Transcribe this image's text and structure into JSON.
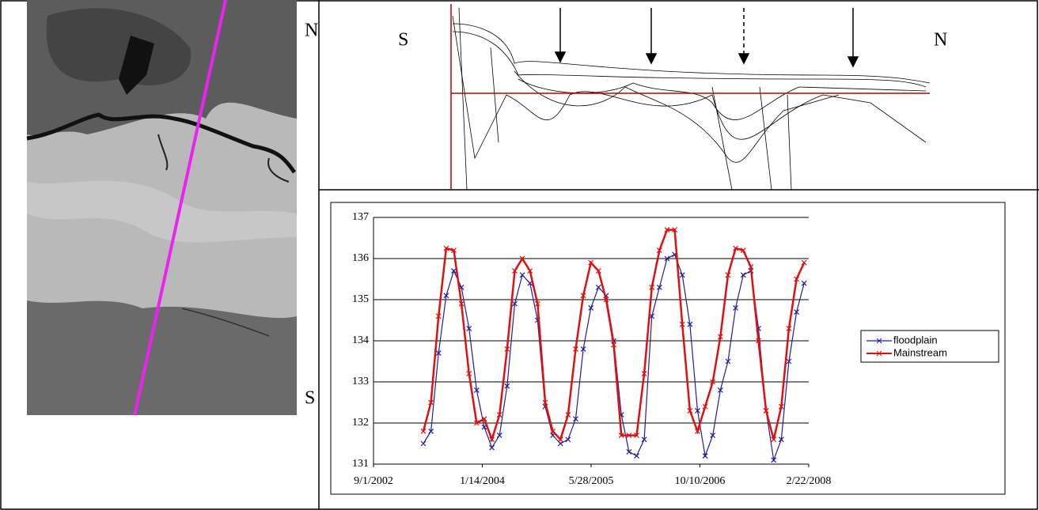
{
  "image_panel": {
    "north_label": "N",
    "south_label": "S"
  },
  "profile_panel": {
    "south_label": "S",
    "north_label": "N"
  },
  "chart_data": {
    "type": "line",
    "x": [
      "4/18/2003",
      "5/23/2003",
      "6/27/2003",
      "8/1/2003",
      "9/5/2003",
      "10/10/2003",
      "11/14/2003",
      "12/19/2003",
      "1/23/2004",
      "2/27/2004",
      "4/2/2004",
      "5/7/2004",
      "6/11/2004",
      "7/16/2004",
      "8/20/2004",
      "9/24/2004",
      "10/29/2004",
      "12/3/2004",
      "1/7/2005",
      "2/11/2005",
      "3/18/2005",
      "4/22/2005",
      "5/27/2005",
      "7/1/2005",
      "8/5/2005",
      "9/9/2005",
      "10/14/2005",
      "11/18/2005",
      "12/23/2005",
      "1/27/2006",
      "3/3/2006",
      "4/7/2006",
      "5/12/2006",
      "6/16/2006",
      "7/21/2006",
      "8/25/2006",
      "9/29/2006",
      "11/3/2006",
      "12/8/2006",
      "1/12/2007",
      "2/16/2007",
      "3/23/2007",
      "4/27/2007",
      "6/1/2007",
      "7/6/2007",
      "8/10/2007",
      "9/14/2007",
      "10/19/2007",
      "11/23/2007",
      "12/28/2007",
      "2/1/2008"
    ],
    "series": [
      {
        "name": "floodplain",
        "color": "#1f1f9a",
        "values": [
          131.5,
          131.8,
          133.7,
          135.1,
          135.7,
          135.3,
          134.3,
          132.8,
          131.9,
          131.4,
          131.7,
          132.9,
          134.9,
          135.6,
          135.4,
          134.5,
          132.4,
          131.7,
          131.5,
          131.6,
          132.1,
          133.8,
          134.8,
          135.3,
          135.1,
          134.0,
          132.2,
          131.3,
          131.2,
          131.6,
          134.6,
          135.3,
          136.0,
          136.1,
          135.6,
          134.4,
          132.3,
          131.2,
          131.7,
          132.8,
          133.5,
          134.8,
          135.6,
          135.7,
          134.3,
          132.3,
          131.1,
          131.6,
          133.5,
          134.7,
          135.4
        ]
      },
      {
        "name": "Mainstream",
        "color": "#e01010",
        "values": [
          131.8,
          132.5,
          134.6,
          136.25,
          136.2,
          134.9,
          133.2,
          132.0,
          132.1,
          131.6,
          132.2,
          133.8,
          135.7,
          136.0,
          135.7,
          134.9,
          132.5,
          131.8,
          131.6,
          132.2,
          133.8,
          135.1,
          135.9,
          135.7,
          135.0,
          133.9,
          131.7,
          131.7,
          131.7,
          133.2,
          135.3,
          136.2,
          136.7,
          136.7,
          134.4,
          132.3,
          131.8,
          132.4,
          133.0,
          134.1,
          135.6,
          136.25,
          136.2,
          135.8,
          134.0,
          132.3,
          131.6,
          132.4,
          134.3,
          135.5,
          135.9
        ]
      }
    ],
    "xlim": [
      "9/1/2002",
      "2/22/2008"
    ],
    "xticks": [
      "9/1/2002",
      "1/14/2004",
      "5/28/2005",
      "10/10/2006",
      "2/22/2008"
    ],
    "ylim": [
      131,
      137
    ],
    "yticks": [
      131,
      132,
      133,
      134,
      135,
      136,
      137
    ],
    "grid": true,
    "legend": "right"
  }
}
